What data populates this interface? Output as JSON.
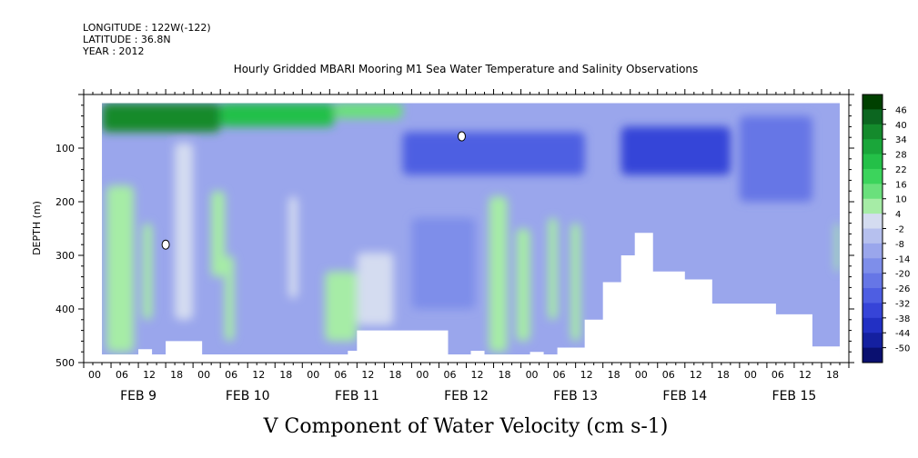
{
  "header": {
    "longitude": "LONGITUDE : 122W(-122)",
    "latitude": "LATITUDE : 36.8N",
    "year": "YEAR : 2012"
  },
  "title": "Hourly Gridded MBARI Mooring M1 Sea Water Temperature and Salinity Observations",
  "bottom_title": "V Component of Water Velocity (cm s-1)",
  "chart_data": {
    "type": "heatmap",
    "title": "Hourly Gridded MBARI Mooring M1 Sea Water Temperature and Salinity Observations",
    "xlabel": "",
    "ylabel": "DEPTH (m)",
    "colorbar_label": "V Component of Water Velocity (cm s-1)",
    "x_hour_ticks": [
      "00",
      "06",
      "12",
      "18",
      "00",
      "06",
      "12",
      "18",
      "00",
      "06",
      "12",
      "18",
      "00",
      "06",
      "12",
      "18",
      "00",
      "06",
      "12",
      "18",
      "00",
      "06",
      "12",
      "18",
      "00",
      "06",
      "12",
      "18"
    ],
    "x_day_labels": [
      "FEB 9",
      "FEB 10",
      "FEB 11",
      "FEB 12",
      "FEB 13",
      "FEB 14",
      "FEB 15"
    ],
    "xlim_hours": [
      0,
      168
    ],
    "y_ticks": [
      100,
      200,
      300,
      400,
      500
    ],
    "ylim": [
      0,
      500
    ],
    "y_inverted": true,
    "colorbar_levels": [
      46,
      40,
      34,
      28,
      22,
      16,
      10,
      4,
      -2,
      -8,
      -14,
      -20,
      -26,
      -32,
      -38,
      -44,
      -50
    ],
    "colorbar_colors": [
      "#004000",
      "#0c6620",
      "#148a2c",
      "#1aa63a",
      "#24c048",
      "#3cd45c",
      "#6ae07c",
      "#a6eca6",
      "#d4dcf0",
      "#b6c0ee",
      "#9aa6ec",
      "#7e8eea",
      "#6676e6",
      "#4e5ee2",
      "#3644d8",
      "#2230c4",
      "#1420a0",
      "#0a1070"
    ],
    "data_start_hour": 4,
    "data_end_hour": 166,
    "top_depth_m": 16,
    "bottom_depth_m": 485,
    "bottom_cutoff": [
      {
        "hour": 4,
        "depth": 485
      },
      {
        "hour": 12,
        "depth": 485
      },
      {
        "hour": 12,
        "depth": 475
      },
      {
        "hour": 15,
        "depth": 475
      },
      {
        "hour": 15,
        "depth": 485
      },
      {
        "hour": 18,
        "depth": 485
      },
      {
        "hour": 18,
        "depth": 460
      },
      {
        "hour": 26,
        "depth": 460
      },
      {
        "hour": 26,
        "depth": 485
      },
      {
        "hour": 58,
        "depth": 485
      },
      {
        "hour": 58,
        "depth": 478
      },
      {
        "hour": 60,
        "depth": 478
      },
      {
        "hour": 60,
        "depth": 440
      },
      {
        "hour": 80,
        "depth": 440
      },
      {
        "hour": 80,
        "depth": 485
      },
      {
        "hour": 85,
        "depth": 485
      },
      {
        "hour": 85,
        "depth": 478
      },
      {
        "hour": 88,
        "depth": 478
      },
      {
        "hour": 88,
        "depth": 485
      },
      {
        "hour": 98,
        "depth": 485
      },
      {
        "hour": 98,
        "depth": 480
      },
      {
        "hour": 101,
        "depth": 480
      },
      {
        "hour": 101,
        "depth": 485
      },
      {
        "hour": 104,
        "depth": 485
      },
      {
        "hour": 104,
        "depth": 472
      },
      {
        "hour": 110,
        "depth": 472
      },
      {
        "hour": 110,
        "depth": 420
      },
      {
        "hour": 114,
        "depth": 420
      },
      {
        "hour": 114,
        "depth": 350
      },
      {
        "hour": 118,
        "depth": 350
      },
      {
        "hour": 118,
        "depth": 300
      },
      {
        "hour": 121,
        "depth": 300
      },
      {
        "hour": 121,
        "depth": 258
      },
      {
        "hour": 125,
        "depth": 258
      },
      {
        "hour": 125,
        "depth": 330
      },
      {
        "hour": 132,
        "depth": 330
      },
      {
        "hour": 132,
        "depth": 345
      },
      {
        "hour": 138,
        "depth": 345
      },
      {
        "hour": 138,
        "depth": 390
      },
      {
        "hour": 152,
        "depth": 390
      },
      {
        "hour": 152,
        "depth": 410
      },
      {
        "hour": 160,
        "depth": 410
      },
      {
        "hour": 160,
        "depth": 470
      },
      {
        "hour": 166,
        "depth": 470
      }
    ],
    "features": [
      {
        "hour": 4,
        "hour_end": 30,
        "depth": 16,
        "depth_end": 70,
        "value": 34
      },
      {
        "hour": 30,
        "hour_end": 55,
        "depth": 16,
        "depth_end": 60,
        "value": 24
      },
      {
        "hour": 55,
        "hour_end": 70,
        "depth": 16,
        "depth_end": 45,
        "value": 14
      },
      {
        "hour": 5,
        "hour_end": 11,
        "depth": 170,
        "depth_end": 480,
        "value": 6
      },
      {
        "hour": 13,
        "hour_end": 15,
        "depth": 240,
        "depth_end": 420,
        "value": 4
      },
      {
        "hour": 20,
        "hour_end": 24,
        "depth": 90,
        "depth_end": 420,
        "value": 3
      },
      {
        "hour": 28,
        "hour_end": 31,
        "depth": 180,
        "depth_end": 340,
        "value": 5
      },
      {
        "hour": 31,
        "hour_end": 33,
        "depth": 300,
        "depth_end": 460,
        "value": 6
      },
      {
        "hour": 45,
        "hour_end": 47,
        "depth": 190,
        "depth_end": 380,
        "value": 3
      },
      {
        "hour": 53,
        "hour_end": 60,
        "depth": 330,
        "depth_end": 460,
        "value": 5
      },
      {
        "hour": 60,
        "hour_end": 68,
        "depth": 295,
        "depth_end": 430,
        "value": 2
      },
      {
        "hour": 89,
        "hour_end": 93,
        "depth": 190,
        "depth_end": 480,
        "value": 8
      },
      {
        "hour": 95,
        "hour_end": 98,
        "depth": 250,
        "depth_end": 460,
        "value": 5
      },
      {
        "hour": 102,
        "hour_end": 104,
        "depth": 230,
        "depth_end": 420,
        "value": 8
      },
      {
        "hour": 107,
        "hour_end": 109,
        "depth": 240,
        "depth_end": 460,
        "value": 6
      },
      {
        "hour": 165,
        "hour_end": 166,
        "depth": 240,
        "depth_end": 330,
        "value": 6
      },
      {
        "hour": 70,
        "hour_end": 110,
        "depth": 70,
        "depth_end": 150,
        "value": -32
      },
      {
        "hour": 118,
        "hour_end": 142,
        "depth": 60,
        "depth_end": 150,
        "value": -34
      },
      {
        "hour": 144,
        "hour_end": 160,
        "depth": 40,
        "depth_end": 200,
        "value": -24
      },
      {
        "hour": 72,
        "hour_end": 86,
        "depth": 230,
        "depth_end": 400,
        "value": -20
      }
    ],
    "missing_points": [
      {
        "hour": 83,
        "depth": 78
      },
      {
        "hour": 18,
        "depth": 280
      }
    ]
  }
}
